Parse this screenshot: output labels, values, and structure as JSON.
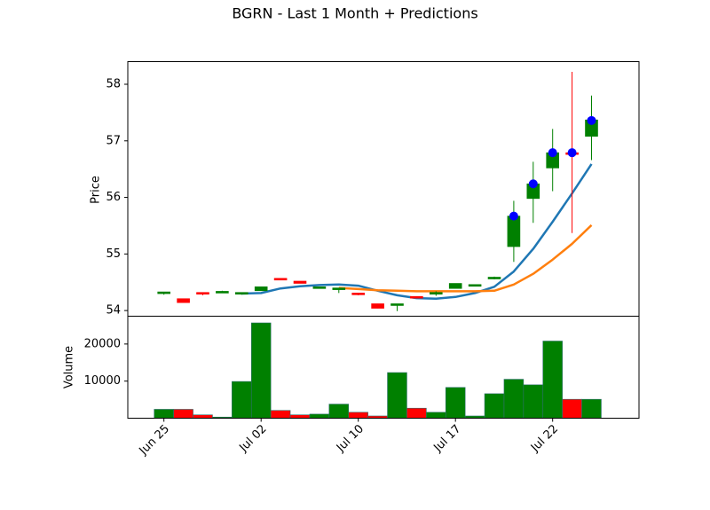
{
  "chart_data": {
    "type": "candlestick",
    "title": "BGRN - Last 1 Month + Predictions",
    "price_panel": {
      "ylabel": "Price",
      "ylim": [
        53.9,
        58.4
      ],
      "yticks": [
        54,
        55,
        56,
        57,
        58
      ]
    },
    "volume_panel": {
      "ylabel": "Volume",
      "ylim": [
        0,
        27500
      ],
      "yticks": [
        10000,
        20000
      ]
    },
    "x_ticks": [
      {
        "label": "Jun 25",
        "index": 0
      },
      {
        "label": "Jul 02",
        "index": 5
      },
      {
        "label": "Jul 10",
        "index": 10
      },
      {
        "label": "Jul 17",
        "index": 15
      },
      {
        "label": "Jul 22",
        "index": 20
      }
    ],
    "colors": {
      "up": "#008000",
      "down": "#ff0000",
      "ma_short": "#1f77b4",
      "ma_long": "#ff7f0e",
      "prediction_marker": "#0000ff"
    },
    "candles": [
      {
        "open": 54.31,
        "high": 54.33,
        "low": 54.28,
        "close": 54.33,
        "volume": 2400
      },
      {
        "open": 54.21,
        "high": 54.21,
        "low": 54.14,
        "close": 54.14,
        "volume": 2400
      },
      {
        "open": 54.32,
        "high": 54.32,
        "low": 54.27,
        "close": 54.29,
        "volume": 900
      },
      {
        "open": 54.32,
        "high": 54.35,
        "low": 54.32,
        "close": 54.34,
        "volume": 300
      },
      {
        "open": 54.3,
        "high": 54.32,
        "low": 54.28,
        "close": 54.32,
        "volume": 9900
      },
      {
        "open": 54.35,
        "high": 54.42,
        "low": 54.35,
        "close": 54.42,
        "volume": 25700
      },
      {
        "open": 54.57,
        "high": 54.57,
        "low": 54.54,
        "close": 54.54,
        "volume": 2100
      },
      {
        "open": 54.52,
        "high": 54.52,
        "low": 54.48,
        "close": 54.48,
        "volume": 900
      },
      {
        "open": 54.42,
        "high": 54.42,
        "low": 54.42,
        "close": 54.42,
        "volume": 1100
      },
      {
        "open": 54.4,
        "high": 54.4,
        "low": 54.31,
        "close": 54.4,
        "volume": 3800
      },
      {
        "open": 54.31,
        "high": 54.31,
        "low": 54.27,
        "close": 54.29,
        "volume": 1600
      },
      {
        "open": 54.12,
        "high": 54.12,
        "low": 54.04,
        "close": 54.04,
        "volume": 600
      },
      {
        "open": 54.12,
        "high": 54.12,
        "low": 53.99,
        "close": 54.12,
        "volume": 12300
      },
      {
        "open": 54.25,
        "high": 54.25,
        "low": 54.22,
        "close": 54.22,
        "volume": 2700
      },
      {
        "open": 54.29,
        "high": 54.34,
        "low": 54.26,
        "close": 54.32,
        "volume": 1600
      },
      {
        "open": 54.39,
        "high": 54.48,
        "low": 54.39,
        "close": 54.48,
        "volume": 8300
      },
      {
        "open": 54.43,
        "high": 54.46,
        "low": 54.43,
        "close": 54.46,
        "volume": 600
      },
      {
        "open": 54.57,
        "high": 54.6,
        "low": 54.55,
        "close": 54.59,
        "volume": 6600
      },
      {
        "open": 55.13,
        "high": 55.94,
        "low": 54.86,
        "close": 55.67,
        "volume": 10500
      },
      {
        "open": 55.98,
        "high": 56.63,
        "low": 55.55,
        "close": 56.24,
        "volume": 9000
      },
      {
        "open": 56.52,
        "high": 57.21,
        "low": 56.11,
        "close": 56.79,
        "volume": 20800
      },
      {
        "open": 56.79,
        "high": 58.22,
        "low": 55.37,
        "close": 56.78,
        "volume": 5100
      },
      {
        "open": 57.08,
        "high": 57.8,
        "low": 56.66,
        "close": 57.37,
        "volume": 5100
      }
    ],
    "predictions": [
      {
        "index": 18,
        "value": 55.67
      },
      {
        "index": 19,
        "value": 56.24
      },
      {
        "index": 20,
        "value": 56.79
      },
      {
        "index": 21,
        "value": 56.79
      },
      {
        "index": 22,
        "value": 57.36
      }
    ],
    "series": [
      {
        "values": [
          null,
          null,
          null,
          null,
          54.3,
          54.31,
          54.39,
          54.43,
          54.45,
          54.46,
          54.44,
          54.35,
          54.27,
          54.22,
          54.21,
          54.24,
          54.31,
          54.42,
          54.69,
          55.09,
          55.57,
          56.07,
          56.59
        ]
      },
      {
        "values": [
          null,
          null,
          null,
          null,
          null,
          null,
          null,
          null,
          null,
          54.4,
          54.38,
          54.36,
          54.35,
          54.34,
          54.34,
          54.34,
          54.34,
          54.35,
          54.46,
          54.65,
          54.9,
          55.18,
          55.51
        ]
      }
    ]
  }
}
